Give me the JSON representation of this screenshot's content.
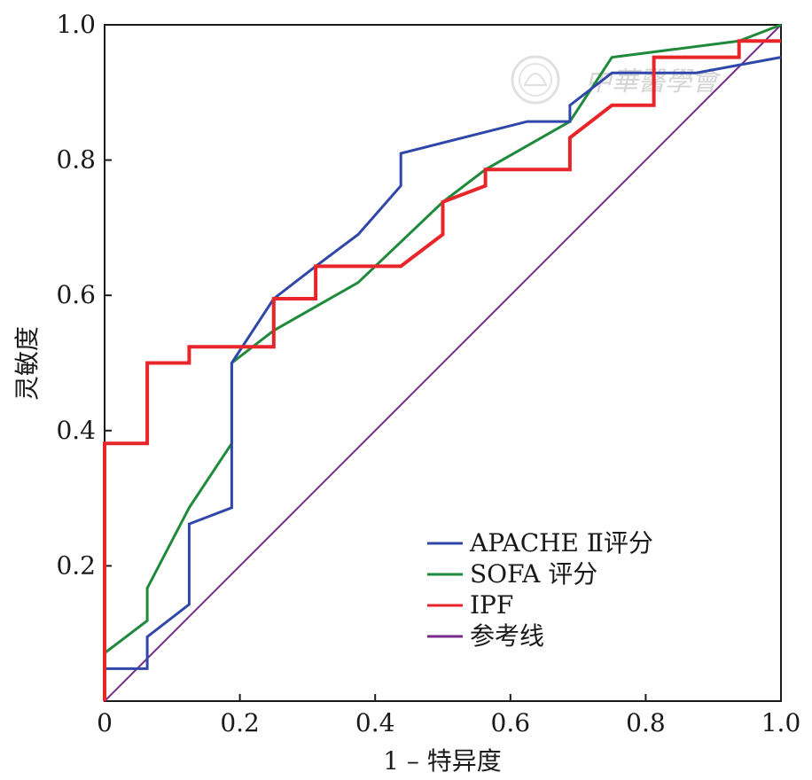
{
  "chart_data": {
    "type": "line",
    "xlabel": "1 – 特异度",
    "ylabel": "灵敏度",
    "xlim": [
      0,
      1
    ],
    "ylim": [
      0,
      1
    ],
    "xticks": [
      "0",
      "0.2",
      "0.4",
      "0.6",
      "0.8",
      "1.0"
    ],
    "yticks": [
      "0.2",
      "0.4",
      "0.6",
      "0.8",
      "1.0"
    ],
    "grid": false,
    "legend_position": "bottom-right",
    "series": [
      {
        "name": "APACHE Ⅱ评分",
        "color": "#2f47a8",
        "points": [
          [
            0,
            0
          ],
          [
            0,
            0.048
          ],
          [
            0.063,
            0.048
          ],
          [
            0.063,
            0.095
          ],
          [
            0.125,
            0.143
          ],
          [
            0.125,
            0.262
          ],
          [
            0.188,
            0.286
          ],
          [
            0.188,
            0.5
          ],
          [
            0.25,
            0.595
          ],
          [
            0.312,
            0.643
          ],
          [
            0.375,
            0.69
          ],
          [
            0.438,
            0.762
          ],
          [
            0.438,
            0.81
          ],
          [
            0.625,
            0.857
          ],
          [
            0.688,
            0.857
          ],
          [
            0.688,
            0.881
          ],
          [
            0.75,
            0.929
          ],
          [
            0.875,
            0.929
          ],
          [
            1.0,
            0.952
          ]
        ]
      },
      {
        "name": "SOFA 评分",
        "color": "#1f8a3c",
        "points": [
          [
            0,
            0
          ],
          [
            0,
            0.071
          ],
          [
            0.063,
            0.119
          ],
          [
            0.063,
            0.167
          ],
          [
            0.125,
            0.286
          ],
          [
            0.188,
            0.381
          ],
          [
            0.188,
            0.5
          ],
          [
            0.25,
            0.548
          ],
          [
            0.375,
            0.619
          ],
          [
            0.5,
            0.738
          ],
          [
            0.563,
            0.786
          ],
          [
            0.688,
            0.857
          ],
          [
            0.75,
            0.952
          ],
          [
            0.938,
            0.976
          ],
          [
            1.0,
            1.0
          ]
        ]
      },
      {
        "name": "IPF",
        "color": "#e8262a",
        "points": [
          [
            0,
            0
          ],
          [
            0,
            0.381
          ],
          [
            0.063,
            0.381
          ],
          [
            0.063,
            0.5
          ],
          [
            0.125,
            0.5
          ],
          [
            0.125,
            0.524
          ],
          [
            0.25,
            0.524
          ],
          [
            0.25,
            0.595
          ],
          [
            0.312,
            0.595
          ],
          [
            0.312,
            0.643
          ],
          [
            0.438,
            0.643
          ],
          [
            0.5,
            0.69
          ],
          [
            0.5,
            0.738
          ],
          [
            0.563,
            0.762
          ],
          [
            0.563,
            0.786
          ],
          [
            0.688,
            0.786
          ],
          [
            0.688,
            0.833
          ],
          [
            0.75,
            0.881
          ],
          [
            0.812,
            0.881
          ],
          [
            0.812,
            0.952
          ],
          [
            0.938,
            0.952
          ],
          [
            0.938,
            0.976
          ],
          [
            1.0,
            0.976
          ]
        ]
      },
      {
        "name": "参考线",
        "color": "#7a2a8a",
        "points": [
          [
            0,
            0
          ],
          [
            1,
            1
          ]
        ]
      }
    ]
  },
  "watermark": {
    "text": "中華醫學會",
    "emblem": "society-emblem-icon"
  }
}
